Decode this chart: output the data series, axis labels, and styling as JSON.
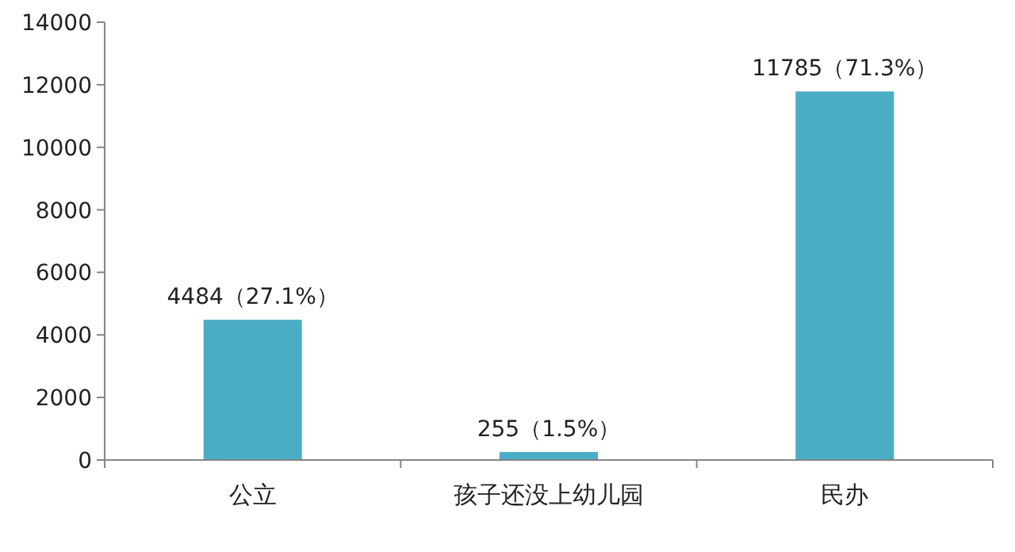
{
  "chart_data": {
    "type": "bar",
    "categories": [
      "公立",
      "孩子还没上幼儿园",
      "民办"
    ],
    "values": [
      4484,
      255,
      11785
    ],
    "value_labels": [
      "4484（27.1%）",
      "255（1.5%）",
      "11785（71.3%）"
    ],
    "color": "#4bacc6",
    "ylim": [
      0,
      14000
    ],
    "yticks": [
      0,
      2000,
      4000,
      6000,
      8000,
      10000,
      12000,
      14000
    ],
    "grid": false
  }
}
